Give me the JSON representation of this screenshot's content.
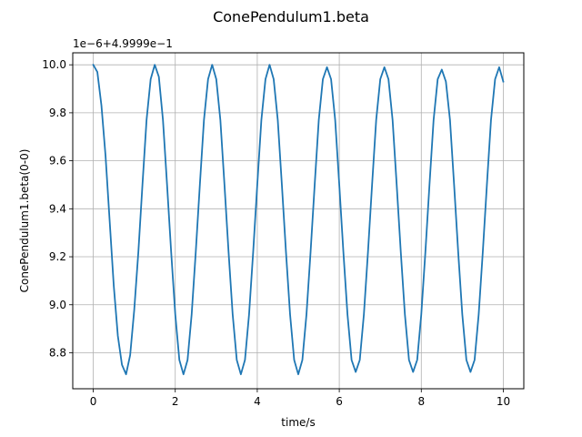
{
  "chart_data": {
    "type": "line",
    "title": "ConePendulum1.beta",
    "xlabel": "time/s",
    "ylabel": "ConePendulum1.beta(0-0)",
    "offset_text": "1e−6+4.9999e−1",
    "xlim": [
      -0.5,
      10.5
    ],
    "ylim": [
      8.65,
      10.05
    ],
    "xticks": [
      0,
      2,
      4,
      6,
      8,
      10
    ],
    "xtick_labels": [
      "0",
      "2",
      "4",
      "6",
      "8",
      "10"
    ],
    "yticks": [
      8.8,
      9.0,
      9.2,
      9.4,
      9.6,
      9.8,
      10.0
    ],
    "ytick_labels": [
      "8.8",
      "9.0",
      "9.2",
      "9.4",
      "9.6",
      "9.8",
      "10.0"
    ],
    "grid": true,
    "series": [
      {
        "color": "#1f77b4",
        "x": [
          0.0,
          0.1,
          0.2,
          0.3,
          0.4,
          0.5,
          0.6,
          0.7,
          0.8,
          0.9,
          1.0,
          1.1,
          1.2,
          1.3,
          1.4,
          1.5,
          1.6,
          1.7,
          1.8,
          1.9,
          2.0,
          2.1,
          2.2,
          2.3,
          2.4,
          2.5,
          2.6,
          2.7,
          2.8,
          2.9,
          3.0,
          3.1,
          3.2,
          3.3,
          3.4,
          3.5,
          3.6,
          3.7,
          3.8,
          3.9,
          4.0,
          4.1,
          4.2,
          4.3,
          4.4,
          4.5,
          4.6,
          4.7,
          4.8,
          4.9,
          5.0,
          5.1,
          5.2,
          5.3,
          5.4,
          5.5,
          5.6,
          5.7,
          5.8,
          5.9,
          6.0,
          6.1,
          6.2,
          6.3,
          6.4,
          6.5,
          6.6,
          6.7,
          6.8,
          6.9,
          7.0,
          7.1,
          7.2,
          7.3,
          7.4,
          7.5,
          7.6,
          7.7,
          7.8,
          7.9,
          8.0,
          8.1,
          8.2,
          8.3,
          8.4,
          8.5,
          8.6,
          8.7,
          8.8,
          8.9,
          9.0,
          9.1,
          9.2,
          9.3,
          9.4,
          9.5,
          9.6,
          9.7,
          9.8,
          9.9,
          10.0
        ],
        "y": [
          10.0,
          9.97,
          9.83,
          9.62,
          9.35,
          9.08,
          8.87,
          8.75,
          8.71,
          8.79,
          8.98,
          9.22,
          9.5,
          9.77,
          9.94,
          10.0,
          9.95,
          9.77,
          9.5,
          9.22,
          8.96,
          8.77,
          8.71,
          8.77,
          8.96,
          9.22,
          9.5,
          9.77,
          9.94,
          10.0,
          9.94,
          9.77,
          9.5,
          9.22,
          8.96,
          8.77,
          8.71,
          8.77,
          8.96,
          9.22,
          9.5,
          9.77,
          9.94,
          10.0,
          9.94,
          9.77,
          9.5,
          9.22,
          8.96,
          8.77,
          8.71,
          8.77,
          8.96,
          9.22,
          9.5,
          9.77,
          9.94,
          9.99,
          9.94,
          9.77,
          9.5,
          9.22,
          8.96,
          8.77,
          8.72,
          8.77,
          8.96,
          9.22,
          9.5,
          9.77,
          9.94,
          9.99,
          9.94,
          9.77,
          9.5,
          9.22,
          8.96,
          8.77,
          8.72,
          8.77,
          8.96,
          9.22,
          9.5,
          9.77,
          9.94,
          9.98,
          9.93,
          9.77,
          9.5,
          9.22,
          8.96,
          8.77,
          8.72,
          8.77,
          8.96,
          9.22,
          9.5,
          9.77,
          9.94,
          9.99,
          9.93
        ]
      }
    ]
  }
}
